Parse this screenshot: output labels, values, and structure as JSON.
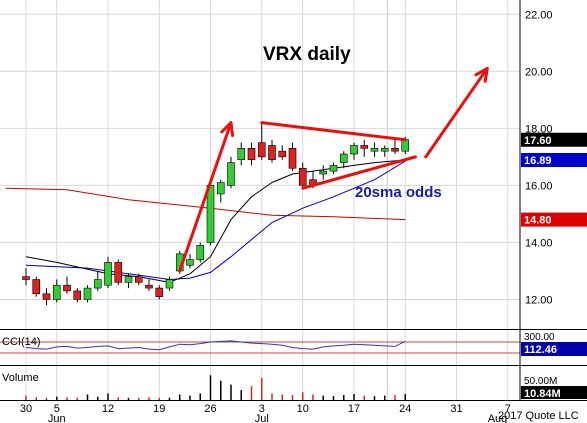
{
  "chart_data": {
    "type": "candlestick",
    "title": "VRX daily",
    "annotation": "20sma odds",
    "copyright": "2017 Quote LLC",
    "price_axis": {
      "ylim": [
        11.0,
        22.5
      ],
      "ticks": [
        "22.00",
        "20.00",
        "18.00",
        "16.00",
        "14.00",
        "12.00"
      ],
      "tick_values": [
        22,
        20,
        18,
        16,
        14,
        12
      ]
    },
    "price_tags": [
      {
        "label": "17.60",
        "value": 17.6,
        "color": "#000000",
        "text_color": "#ffffff"
      },
      {
        "label": "16.89",
        "value": 16.89,
        "color": "#0000cc",
        "text_color": "#ffffff"
      },
      {
        "label": "14.80",
        "value": 14.8,
        "color": "#dd0000",
        "text_color": "#ffffff"
      }
    ],
    "x_axis": {
      "day_labels": [
        "30",
        "5",
        "12",
        "19",
        "26",
        "3",
        "10",
        "17",
        "24",
        "31",
        "7"
      ],
      "day_label_index": [
        0,
        3,
        8,
        13,
        18,
        23,
        27,
        32,
        37,
        42,
        47
      ],
      "month_labels": [
        "Jun",
        "Jul",
        "Aug"
      ],
      "month_label_index": [
        3,
        23,
        46
      ]
    },
    "candles": [
      {
        "o": 12.8,
        "h": 13.1,
        "l": 12.5,
        "c": 12.7
      },
      {
        "o": 12.7,
        "h": 12.8,
        "l": 12.1,
        "c": 12.2
      },
      {
        "o": 12.2,
        "h": 12.4,
        "l": 11.8,
        "c": 12.0
      },
      {
        "o": 12.0,
        "h": 12.7,
        "l": 11.9,
        "c": 12.5
      },
      {
        "o": 12.5,
        "h": 12.8,
        "l": 12.2,
        "c": 12.3
      },
      {
        "o": 12.3,
        "h": 12.4,
        "l": 11.9,
        "c": 12.0
      },
      {
        "o": 12.0,
        "h": 12.5,
        "l": 11.9,
        "c": 12.4
      },
      {
        "o": 12.4,
        "h": 13.0,
        "l": 12.3,
        "c": 12.7
      },
      {
        "o": 12.5,
        "h": 13.5,
        "l": 12.4,
        "c": 13.3
      },
      {
        "o": 13.3,
        "h": 13.4,
        "l": 12.5,
        "c": 12.6
      },
      {
        "o": 12.6,
        "h": 12.9,
        "l": 12.4,
        "c": 12.8
      },
      {
        "o": 12.8,
        "h": 12.9,
        "l": 12.5,
        "c": 12.6
      },
      {
        "o": 12.5,
        "h": 12.7,
        "l": 12.3,
        "c": 12.4
      },
      {
        "o": 12.4,
        "h": 12.5,
        "l": 12.0,
        "c": 12.1
      },
      {
        "o": 12.4,
        "h": 12.8,
        "l": 12.3,
        "c": 12.7
      },
      {
        "o": 13.0,
        "h": 13.7,
        "l": 12.9,
        "c": 13.6
      },
      {
        "o": 13.2,
        "h": 13.6,
        "l": 13.1,
        "c": 13.4
      },
      {
        "o": 13.4,
        "h": 14.0,
        "l": 13.3,
        "c": 13.9
      },
      {
        "o": 14.0,
        "h": 16.1,
        "l": 13.9,
        "c": 16.0
      },
      {
        "o": 15.7,
        "h": 16.2,
        "l": 15.4,
        "c": 16.1
      },
      {
        "o": 16.0,
        "h": 17.0,
        "l": 15.9,
        "c": 16.8
      },
      {
        "o": 16.9,
        "h": 17.5,
        "l": 16.7,
        "c": 17.3
      },
      {
        "o": 17.3,
        "h": 17.5,
        "l": 16.7,
        "c": 16.9
      },
      {
        "o": 17.5,
        "h": 18.2,
        "l": 16.9,
        "c": 17.0
      },
      {
        "o": 17.4,
        "h": 17.6,
        "l": 16.8,
        "c": 16.9
      },
      {
        "o": 17.2,
        "h": 17.4,
        "l": 16.9,
        "c": 17.0
      },
      {
        "o": 17.3,
        "h": 17.5,
        "l": 16.5,
        "c": 16.6
      },
      {
        "o": 16.6,
        "h": 16.8,
        "l": 15.9,
        "c": 16.0
      },
      {
        "o": 16.2,
        "h": 16.5,
        "l": 15.9,
        "c": 16.0
      },
      {
        "o": 16.4,
        "h": 16.7,
        "l": 16.2,
        "c": 16.5
      },
      {
        "o": 16.5,
        "h": 16.8,
        "l": 16.4,
        "c": 16.7
      },
      {
        "o": 16.8,
        "h": 17.2,
        "l": 16.6,
        "c": 17.1
      },
      {
        "o": 17.1,
        "h": 17.5,
        "l": 16.9,
        "c": 17.4
      },
      {
        "o": 17.4,
        "h": 17.6,
        "l": 17.0,
        "c": 17.3
      },
      {
        "o": 17.2,
        "h": 17.5,
        "l": 17.0,
        "c": 17.3
      },
      {
        "o": 17.2,
        "h": 17.4,
        "l": 17.0,
        "c": 17.3
      },
      {
        "o": 17.3,
        "h": 17.6,
        "l": 17.1,
        "c": 17.2
      },
      {
        "o": 17.2,
        "h": 17.7,
        "l": 17.1,
        "c": 17.6
      }
    ],
    "sma_short": [
      [
        0,
        13.5
      ],
      [
        3,
        13.3
      ],
      [
        8,
        12.9
      ],
      [
        11,
        12.8
      ],
      [
        14,
        12.6
      ],
      [
        16,
        12.9
      ],
      [
        18,
        13.5
      ],
      [
        20,
        14.8
      ],
      [
        22,
        15.6
      ],
      [
        24,
        16.1
      ],
      [
        26,
        16.4
      ],
      [
        28,
        16.5
      ],
      [
        30,
        16.6
      ],
      [
        32,
        16.7
      ],
      [
        34,
        16.8
      ],
      [
        37,
        16.89
      ]
    ],
    "sma_long": [
      [
        0,
        13.2
      ],
      [
        6,
        13.1
      ],
      [
        10,
        12.9
      ],
      [
        14,
        12.7
      ],
      [
        16,
        12.75
      ],
      [
        18,
        12.95
      ],
      [
        20,
        13.5
      ],
      [
        22,
        14.1
      ],
      [
        24,
        14.7
      ],
      [
        27,
        15.2
      ],
      [
        30,
        15.6
      ],
      [
        34,
        16.2
      ],
      [
        37,
        16.85
      ]
    ],
    "sma_red": [
      [
        -2,
        15.9
      ],
      [
        4,
        15.85
      ],
      [
        10,
        15.5
      ],
      [
        18,
        15.2
      ],
      [
        24,
        14.95
      ],
      [
        30,
        14.9
      ],
      [
        37,
        14.8
      ]
    ],
    "drawn_lines": [
      {
        "kind": "arrow",
        "from": [
          15,
          13.0
        ],
        "to": [
          20,
          18.2
        ]
      },
      {
        "kind": "line",
        "from": [
          23,
          18.2
        ],
        "to": [
          37,
          17.6
        ]
      },
      {
        "kind": "line",
        "from": [
          27,
          15.9
        ],
        "to": [
          38,
          17.0
        ]
      },
      {
        "kind": "arrow",
        "from": [
          39,
          17.0
        ],
        "to": [
          45,
          20.1
        ]
      }
    ],
    "cci": {
      "label": "CCI(14)",
      "value_label": "112.46",
      "top_tick": "300.00",
      "values": [
        0,
        -20,
        -30,
        10,
        20,
        -10,
        0,
        20,
        30,
        -20,
        -10,
        0,
        -30,
        -40,
        10,
        60,
        50,
        70,
        100,
        110,
        120,
        100,
        80,
        70,
        60,
        40,
        0,
        -20,
        -30,
        10,
        30,
        40,
        60,
        50,
        40,
        30,
        20,
        112.46
      ],
      "ylim": [
        -300,
        300
      ]
    },
    "volume": {
      "label": "Volume",
      "value_label": "10.84M",
      "top_tick": "50.00M",
      "values": [
        8,
        5,
        4,
        6,
        5,
        4,
        10,
        6,
        12,
        5,
        4,
        4,
        5,
        4,
        4,
        10,
        8,
        12,
        45,
        35,
        28,
        18,
        25,
        40,
        12,
        10,
        9,
        14,
        10,
        8,
        7,
        9,
        11,
        8,
        7,
        8,
        9,
        10.84
      ],
      "ylim": [
        0,
        60
      ]
    },
    "colors": {
      "up": "#33cc33",
      "down": "#dd2222",
      "wick": "#000000",
      "sma_short": "#000000",
      "sma_long": "#0000aa",
      "sma_red": "#cc0000",
      "drawn": "#e81010",
      "annotation": "#1a1aaa",
      "grid": "#d8d8d8",
      "cci_line": "#3333bb",
      "cci_band": "#cc4444"
    }
  }
}
